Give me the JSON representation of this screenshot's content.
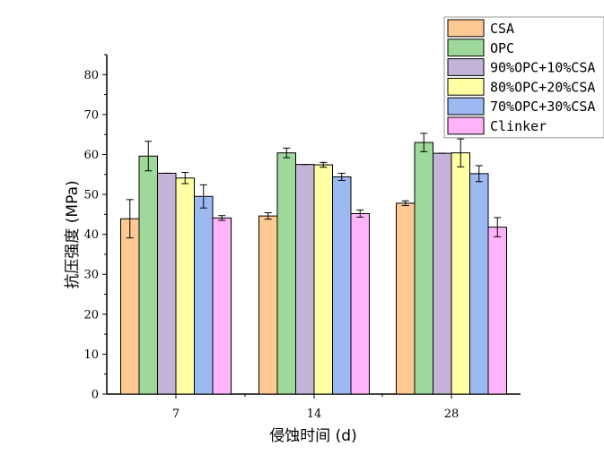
{
  "chart_data": {
    "type": "bar",
    "xlabel": "侵蚀时间 (d)",
    "ylabel": "抗压强度 (MPa)",
    "ylim": [
      0,
      85
    ],
    "yticks": [
      0,
      10,
      20,
      30,
      40,
      50,
      60,
      70,
      80
    ],
    "categories": [
      "7",
      "14",
      "28"
    ],
    "legend_position": "top-right",
    "series": [
      {
        "name": "CSA",
        "color": "#FFC993",
        "values": [
          43.9,
          44.6,
          47.8
        ],
        "errors": [
          4.8,
          0.8,
          0.6
        ]
      },
      {
        "name": "OPC",
        "color": "#9FD89B",
        "values": [
          59.6,
          60.4,
          63.0
        ],
        "errors": [
          3.7,
          1.2,
          2.3
        ]
      },
      {
        "name": "90%OPC+10%CSA",
        "color": "#C3B3D8",
        "values": [
          55.3,
          57.5,
          60.3
        ],
        "errors": [
          0.0,
          0.0,
          0.0
        ]
      },
      {
        "name": "80%OPC+20%CSA",
        "color": "#FFFFA3",
        "values": [
          54.1,
          57.4,
          60.4
        ],
        "errors": [
          1.4,
          0.6,
          3.5
        ]
      },
      {
        "name": "70%OPC+30%CSA",
        "color": "#9DB9F2",
        "values": [
          49.5,
          54.4,
          55.2
        ],
        "errors": [
          2.9,
          0.9,
          2.0
        ]
      },
      {
        "name": "Clinker",
        "color": "#FFB3F9",
        "values": [
          44.1,
          45.2,
          41.8
        ],
        "errors": [
          0.6,
          0.9,
          2.4
        ]
      }
    ]
  }
}
